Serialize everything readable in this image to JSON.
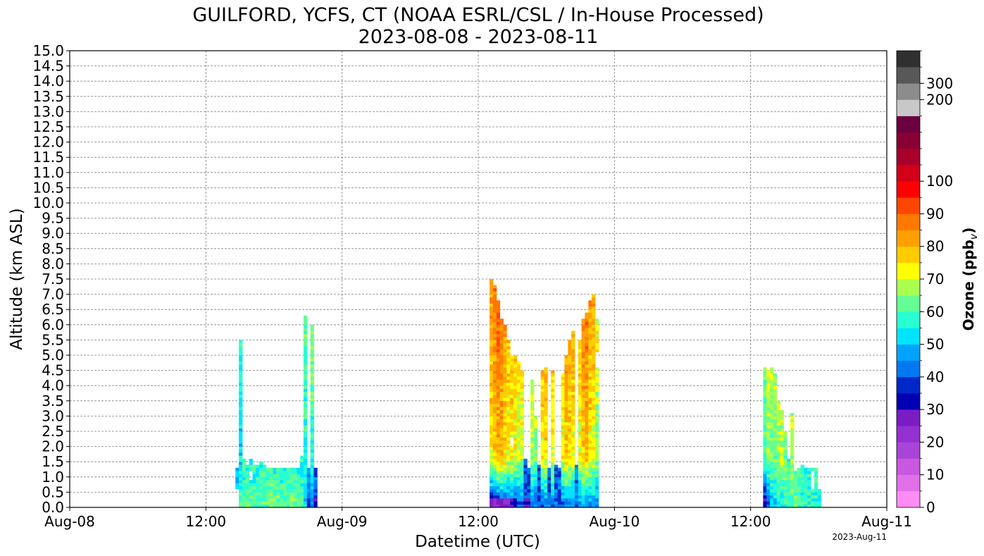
{
  "chart_data": {
    "type": "heatmap",
    "title": "GUILFORD, YCFS, CT (NOAA ESRL/CSL / In-House Processed)",
    "subtitle": "2023-08-08 - 2023-08-11",
    "xlabel": "Datetime (UTC)",
    "ylabel": "Altitude (km ASL)",
    "x_range_hours": [
      0,
      72
    ],
    "ylim": [
      0,
      15
    ],
    "x_ticks": [
      {
        "hour": 0,
        "label": "Aug-08"
      },
      {
        "hour": 12,
        "label": "12:00"
      },
      {
        "hour": 24,
        "label": "Aug-09"
      },
      {
        "hour": 36,
        "label": "12:00"
      },
      {
        "hour": 48,
        "label": "Aug-10"
      },
      {
        "hour": 60,
        "label": "12:00"
      },
      {
        "hour": 72,
        "label": "Aug-11"
      }
    ],
    "y_ticks": [
      "0.0",
      "0.5",
      "1.0",
      "1.5",
      "2.0",
      "2.5",
      "3.0",
      "3.5",
      "4.0",
      "4.5",
      "5.0",
      "5.5",
      "6.0",
      "6.5",
      "7.0",
      "7.5",
      "8.0",
      "8.5",
      "9.0",
      "9.5",
      "10.0",
      "10.5",
      "11.0",
      "11.5",
      "12.0",
      "12.5",
      "13.0",
      "13.5",
      "14.0",
      "14.5",
      "15.0"
    ],
    "grid": true,
    "colorbar": {
      "label": "Ozone (ppb",
      "label_sub": "v",
      "colors": [
        "#ff8cf5",
        "#e070e8",
        "#c858e0",
        "#a844d8",
        "#9430d0",
        "#7a1cc4",
        "#0000b4",
        "#0028c8",
        "#0078f0",
        "#00a4ff",
        "#00e4ff",
        "#28ffd2",
        "#64ff94",
        "#a8ff50",
        "#ffff00",
        "#ffcc00",
        "#ffa000",
        "#ff7800",
        "#ff4600",
        "#ff0000",
        "#d20018",
        "#a8002a",
        "#880034",
        "#6a0040",
        "#c8c8c8",
        "#8c8c8c",
        "#585858",
        "#303030"
      ],
      "ticks": [
        {
          "label": "0",
          "bin": 0
        },
        {
          "label": "10",
          "bin": 2
        },
        {
          "label": "20",
          "bin": 4
        },
        {
          "label": "30",
          "bin": 6
        },
        {
          "label": "40",
          "bin": 8
        },
        {
          "label": "50",
          "bin": 10
        },
        {
          "label": "60",
          "bin": 12
        },
        {
          "label": "70",
          "bin": 14
        },
        {
          "label": "80",
          "bin": 16
        },
        {
          "label": "90",
          "bin": 18
        },
        {
          "label": "100",
          "bin": 20
        },
        {
          "label": "200",
          "bin": 25
        },
        {
          "label": "300",
          "bin": 26
        }
      ]
    },
    "profile_step_hours": 0.33,
    "altitude_step_km": 0.1,
    "periods": [
      {
        "day": "Aug-08",
        "profiles": [
          {
            "t": 14.6,
            "top": 1.3,
            "bottom": 0.7,
            "mid": 50,
            "low": 52
          },
          {
            "t": 14.9,
            "top": 5.5,
            "bottom": 0.1,
            "mid": 52,
            "low": 60
          },
          {
            "t": 15.2,
            "top": 1.6,
            "bottom": 0.1,
            "mid": 55,
            "low": 62
          },
          {
            "t": 15.5,
            "top": 1.4,
            "bottom": 0.1,
            "mid": 56,
            "low": 64
          },
          {
            "t": 15.8,
            "top": 1.6,
            "bottom": 0.1,
            "mid": 55,
            "low": 62
          },
          {
            "t": 16.1,
            "top": 1.4,
            "bottom": 0.1,
            "mid": 56,
            "low": 63
          },
          {
            "t": 16.4,
            "top": 1.4,
            "bottom": 0.1,
            "mid": 55,
            "low": 62
          },
          {
            "t": 16.7,
            "top": 1.5,
            "bottom": 0.1,
            "mid": 56,
            "low": 63
          },
          {
            "t": 17.0,
            "top": 1.4,
            "bottom": 0.1,
            "mid": 57,
            "low": 64
          },
          {
            "t": 17.3,
            "top": 1.3,
            "bottom": 0.1,
            "mid": 56,
            "low": 62
          },
          {
            "t": 17.6,
            "top": 1.3,
            "bottom": 0.1,
            "mid": 57,
            "low": 64
          },
          {
            "t": 17.9,
            "top": 1.3,
            "bottom": 0.1,
            "mid": 56,
            "low": 63
          },
          {
            "t": 18.2,
            "top": 1.3,
            "bottom": 0.1,
            "mid": 57,
            "low": 64
          },
          {
            "t": 18.5,
            "top": 1.3,
            "bottom": 0.1,
            "mid": 56,
            "low": 62
          },
          {
            "t": 18.8,
            "top": 1.3,
            "bottom": 0.1,
            "mid": 57,
            "low": 63
          },
          {
            "t": 19.1,
            "top": 1.3,
            "bottom": 0.1,
            "mid": 56,
            "low": 62
          },
          {
            "t": 19.4,
            "top": 1.3,
            "bottom": 0.1,
            "mid": 57,
            "low": 64
          },
          {
            "t": 19.7,
            "top": 1.3,
            "bottom": 0.1,
            "mid": 56,
            "low": 63
          },
          {
            "t": 20.0,
            "top": 1.3,
            "bottom": 0.1,
            "mid": 57,
            "low": 62
          },
          {
            "t": 20.3,
            "top": 1.7,
            "bottom": 0.1,
            "mid": 55,
            "low": 60
          },
          {
            "t": 20.6,
            "top": 6.3,
            "bottom": 0.1,
            "mid": 56,
            "low": 54
          },
          {
            "t": 20.9,
            "top": 1.3,
            "bottom": 0.1,
            "mid": 48,
            "low": 40
          },
          {
            "t": 21.2,
            "top": 6.0,
            "bottom": 0.1,
            "mid": 58,
            "low": 45
          },
          {
            "t": 21.5,
            "top": 1.3,
            "bottom": 0.1,
            "mid": 45,
            "low": 38
          }
        ]
      },
      {
        "day": "Aug-09",
        "profiles": [
          {
            "t": 37.0,
            "top": 7.5,
            "bottom": 0.1,
            "mid": 74,
            "low": 32
          },
          {
            "t": 37.3,
            "top": 7.3,
            "bottom": 0.1,
            "mid": 78,
            "low": 32
          },
          {
            "t": 37.6,
            "top": 6.8,
            "bottom": 0.1,
            "mid": 82,
            "low": 34
          },
          {
            "t": 37.9,
            "top": 6.2,
            "bottom": 0.1,
            "mid": 80,
            "low": 35
          },
          {
            "t": 38.2,
            "top": 6.0,
            "bottom": 0.1,
            "mid": 76,
            "low": 36
          },
          {
            "t": 38.5,
            "top": 5.5,
            "bottom": 0.1,
            "mid": 72,
            "low": 36
          },
          {
            "t": 38.8,
            "top": 5.0,
            "bottom": 0.1,
            "mid": 74,
            "low": 38
          },
          {
            "t": 39.1,
            "top": 5.0,
            "bottom": 0.1,
            "mid": 72,
            "low": 38
          },
          {
            "t": 39.4,
            "top": 4.8,
            "bottom": 0.1,
            "mid": 70,
            "low": 40
          },
          {
            "t": 39.7,
            "top": 4.5,
            "bottom": 0.1,
            "mid": 70,
            "low": 40
          },
          {
            "t": 40.0,
            "top": 1.6,
            "bottom": 0.1,
            "mid": 40,
            "low": 38
          },
          {
            "t": 40.3,
            "top": 1.3,
            "bottom": 0.1,
            "mid": 40,
            "low": 38
          },
          {
            "t": 40.6,
            "top": 4.2,
            "bottom": 0.1,
            "mid": 68,
            "low": 40
          },
          {
            "t": 40.9,
            "top": 3.0,
            "bottom": 0.1,
            "mid": 65,
            "low": 41
          },
          {
            "t": 41.2,
            "top": 1.4,
            "bottom": 0.1,
            "mid": 40,
            "low": 40
          },
          {
            "t": 41.5,
            "top": 4.5,
            "bottom": 0.1,
            "mid": 74,
            "low": 42
          },
          {
            "t": 41.8,
            "top": 4.6,
            "bottom": 0.1,
            "mid": 76,
            "low": 42
          },
          {
            "t": 42.1,
            "top": 1.3,
            "bottom": 0.1,
            "mid": 40,
            "low": 42
          },
          {
            "t": 42.4,
            "top": 4.5,
            "bottom": 0.1,
            "mid": 72,
            "low": 42
          },
          {
            "t": 42.7,
            "top": 1.4,
            "bottom": 0.1,
            "mid": 40,
            "low": 42
          },
          {
            "t": 43.0,
            "top": 1.3,
            "bottom": 0.1,
            "mid": 40,
            "low": 42
          },
          {
            "t": 43.3,
            "top": 4.4,
            "bottom": 0.1,
            "mid": 72,
            "low": 42
          },
          {
            "t": 43.6,
            "top": 5.0,
            "bottom": 0.1,
            "mid": 78,
            "low": 44
          },
          {
            "t": 43.9,
            "top": 5.5,
            "bottom": 0.1,
            "mid": 76,
            "low": 44
          },
          {
            "t": 44.2,
            "top": 5.8,
            "bottom": 0.1,
            "mid": 74,
            "low": 44
          },
          {
            "t": 44.5,
            "top": 1.4,
            "bottom": 0.1,
            "mid": 45,
            "low": 44
          },
          {
            "t": 44.8,
            "top": 5.5,
            "bottom": 0.1,
            "mid": 72,
            "low": 44
          },
          {
            "t": 45.1,
            "top": 6.2,
            "bottom": 0.1,
            "mid": 78,
            "low": 46
          },
          {
            "t": 45.4,
            "top": 6.4,
            "bottom": 0.1,
            "mid": 80,
            "low": 46
          },
          {
            "t": 45.7,
            "top": 6.8,
            "bottom": 0.1,
            "mid": 74,
            "low": 46
          },
          {
            "t": 46.0,
            "top": 7.0,
            "bottom": 0.1,
            "mid": 72,
            "low": 46
          },
          {
            "t": 46.3,
            "top": 6.2,
            "bottom": 0.1,
            "mid": 66,
            "low": 45
          }
        ]
      },
      {
        "day": "Aug-10",
        "profiles": [
          {
            "t": 61.1,
            "top": 4.6,
            "bottom": 0.1,
            "mid": 60,
            "low": 34
          },
          {
            "t": 61.4,
            "top": 4.5,
            "bottom": 0.1,
            "mid": 66,
            "low": 40
          },
          {
            "t": 61.7,
            "top": 4.6,
            "bottom": 0.1,
            "mid": 64,
            "low": 50
          },
          {
            "t": 62.0,
            "top": 4.4,
            "bottom": 0.1,
            "mid": 63,
            "low": 52
          },
          {
            "t": 62.3,
            "top": 3.5,
            "bottom": 0.1,
            "mid": 66,
            "low": 55
          },
          {
            "t": 62.6,
            "top": 3.2,
            "bottom": 0.1,
            "mid": 68,
            "low": 56
          },
          {
            "t": 62.9,
            "top": 2.5,
            "bottom": 0.1,
            "mid": 64,
            "low": 58
          },
          {
            "t": 63.2,
            "top": 1.6,
            "bottom": 0.1,
            "mid": 58,
            "low": 60
          },
          {
            "t": 63.5,
            "top": 3.1,
            "bottom": 0.1,
            "mid": 66,
            "low": 62
          },
          {
            "t": 63.8,
            "top": 1.2,
            "bottom": 0.1,
            "mid": 58,
            "low": 64
          },
          {
            "t": 64.1,
            "top": 1.3,
            "bottom": 0.1,
            "mid": 58,
            "low": 62
          },
          {
            "t": 64.4,
            "top": 1.4,
            "bottom": 0.1,
            "mid": 57,
            "low": 60
          },
          {
            "t": 64.7,
            "top": 1.3,
            "bottom": 0.1,
            "mid": 56,
            "low": 58
          },
          {
            "t": 65.0,
            "top": 1.3,
            "bottom": 0.1,
            "mid": 56,
            "low": 58
          },
          {
            "t": 65.3,
            "top": 1.3,
            "bottom": 0.1,
            "mid": 56,
            "low": 58
          },
          {
            "t": 65.6,
            "top": 1.3,
            "bottom": 0.1,
            "mid": 56,
            "low": 58
          },
          {
            "t": 65.9,
            "top": 0.6,
            "bottom": 0.1,
            "mid": 55,
            "low": 56
          }
        ]
      }
    ],
    "gaps": [
      {
        "t": 15.8,
        "from": 0.8,
        "to": 1.2
      },
      {
        "t": 65.3,
        "from": 0.6,
        "to": 1.1
      },
      {
        "t": 38.8,
        "from": 2.0,
        "to": 2.3
      },
      {
        "t": 46.3,
        "from": 4.6,
        "to": 5.0
      }
    ],
    "timestamp": "2023-Aug-11"
  }
}
